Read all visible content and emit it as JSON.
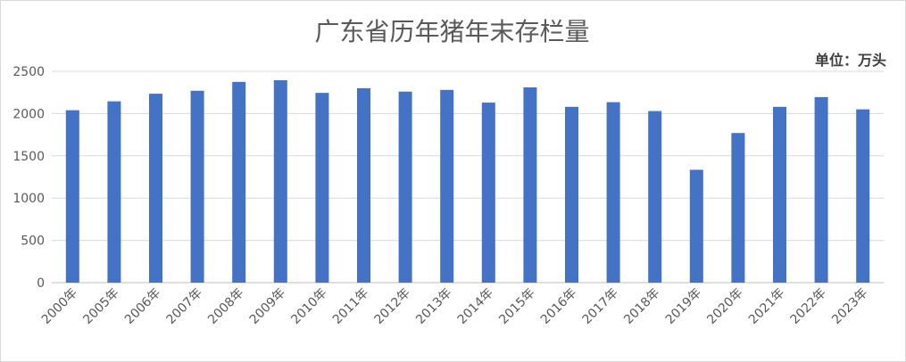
{
  "chart_data": {
    "type": "bar",
    "title": "广东省历年猪年末存栏量",
    "unit_label": "单位：万头",
    "xlabel": "",
    "ylabel": "",
    "ylim": [
      0,
      2500
    ],
    "yticks": [
      0,
      500,
      1000,
      1500,
      2000,
      2500
    ],
    "grid": true,
    "legend": "none",
    "bar_color": "#4472c4",
    "categories": [
      "2000年",
      "2005年",
      "2006年",
      "2007年",
      "2008年",
      "2009年",
      "2010年",
      "2011年",
      "2012年",
      "2013年",
      "2014年",
      "2015年",
      "2016年",
      "2017年",
      "2018年",
      "2019年",
      "2020年",
      "2021年",
      "2022年",
      "2023年"
    ],
    "values": [
      2040,
      2145,
      2235,
      2270,
      2375,
      2395,
      2245,
      2300,
      2260,
      2280,
      2130,
      2310,
      2080,
      2135,
      2030,
      1335,
      1770,
      2080,
      2195,
      2050
    ]
  }
}
